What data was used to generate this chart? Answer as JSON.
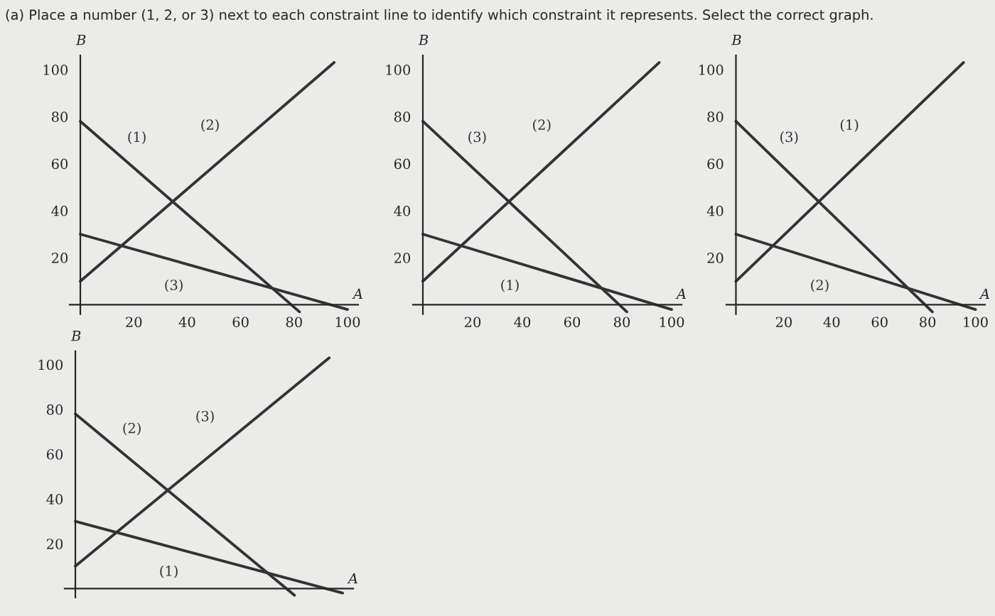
{
  "chart_data": [
    {
      "type": "line",
      "title": "(a) Place a number (1, 2, or 3) next to each constraint line to identify which constraint it represents. Select the correct graph.",
      "xlabel": "A",
      "ylabel": "B",
      "xlim": [
        -4,
        104
      ],
      "ylim": [
        -4,
        106
      ],
      "xticks": [
        20,
        40,
        60,
        80,
        100
      ],
      "yticks": [
        20,
        40,
        60,
        80,
        100
      ],
      "grid": false,
      "marker": "none",
      "line_style": "solid",
      "series": [
        {
          "name": "(1)",
          "color": "#333333",
          "x": [
            0,
            82
          ],
          "values": [
            78,
            -3
          ]
        },
        {
          "name": "(2)",
          "color": "#333333",
          "x": [
            0,
            95
          ],
          "values": [
            10,
            103
          ]
        },
        {
          "name": "(3)",
          "color": "#333333",
          "x": [
            0,
            100
          ],
          "values": [
            30,
            -2
          ]
        }
      ]
    },
    {
      "type": "line",
      "xlabel": "A",
      "ylabel": "B",
      "xlim": [
        -4,
        104
      ],
      "ylim": [
        -4,
        106
      ],
      "xticks": [
        20,
        40,
        60,
        80,
        100
      ],
      "yticks": [
        20,
        40,
        60,
        80,
        100
      ],
      "grid": false,
      "marker": "none",
      "line_style": "solid",
      "series": [
        {
          "name": "(3)",
          "color": "#333333",
          "x": [
            0,
            82
          ],
          "values": [
            78,
            -3
          ]
        },
        {
          "name": "(2)",
          "color": "#333333",
          "x": [
            0,
            95
          ],
          "values": [
            10,
            103
          ]
        },
        {
          "name": "(1)",
          "color": "#333333",
          "x": [
            0,
            100
          ],
          "values": [
            30,
            -2
          ]
        }
      ]
    },
    {
      "type": "line",
      "xlabel": "A",
      "ylabel": "B",
      "xlim": [
        -4,
        104
      ],
      "ylim": [
        -4,
        106
      ],
      "xticks": [
        20,
        40,
        60,
        80,
        100
      ],
      "yticks": [
        20,
        40,
        60,
        80,
        100
      ],
      "grid": false,
      "marker": "none",
      "line_style": "solid",
      "series": [
        {
          "name": "(3)",
          "color": "#333333",
          "x": [
            0,
            82
          ],
          "values": [
            78,
            -3
          ]
        },
        {
          "name": "(1)",
          "color": "#333333",
          "x": [
            0,
            95
          ],
          "values": [
            10,
            103
          ]
        },
        {
          "name": "(2)",
          "color": "#333333",
          "x": [
            0,
            100
          ],
          "values": [
            30,
            -2
          ]
        }
      ]
    },
    {
      "type": "line",
      "xlabel": "A",
      "ylabel": "B",
      "xlim": [
        -4,
        104
      ],
      "ylim": [
        -4,
        106
      ],
      "xticks": [
        20,
        40,
        60,
        80,
        100
      ],
      "yticks": [
        20,
        40,
        60,
        80,
        100
      ],
      "tick_labels": "y",
      "grid": false,
      "marker": "none",
      "line_style": "solid",
      "series": [
        {
          "name": "(2)",
          "color": "#333333",
          "x": [
            0,
            82
          ],
          "values": [
            78,
            -3
          ]
        },
        {
          "name": "(3)",
          "color": "#333333",
          "x": [
            0,
            95
          ],
          "values": [
            10,
            103
          ]
        },
        {
          "name": "(1)",
          "color": "#333333",
          "x": [
            0,
            100
          ],
          "values": [
            30,
            -2
          ]
        }
      ]
    }
  ]
}
